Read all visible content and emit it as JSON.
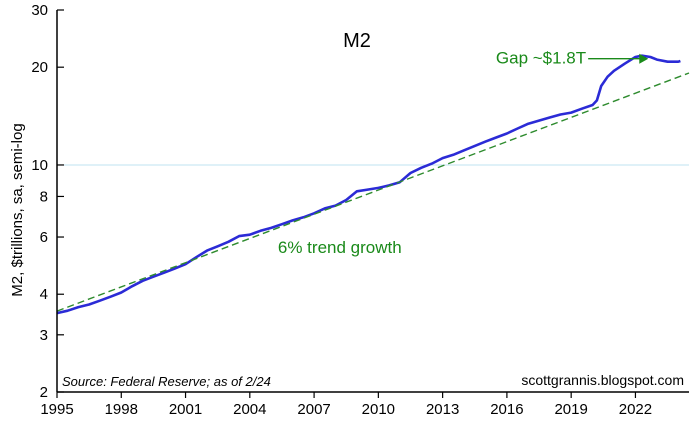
{
  "chart_data": {
    "type": "line",
    "title": "M2",
    "ylabel": "M2, $trillions, sa, semi-log",
    "y_scale": "log",
    "ylim": [
      2,
      30
    ],
    "xlim": [
      1995,
      2024.5
    ],
    "x_ticks": [
      "1995",
      "1998",
      "2001",
      "2004",
      "2007",
      "2010",
      "2013",
      "2016",
      "2019",
      "2022"
    ],
    "y_ticks": [
      "2",
      "3",
      "4",
      "6",
      "8",
      "10",
      "20",
      "30"
    ],
    "reference_line_y": 10,
    "colors": {
      "series": "#2b2bd6",
      "trend": "#2e8b2e",
      "annotation": "#1a8a1a",
      "reference": "#bfe3f2",
      "axis": "#000000"
    },
    "series": [
      {
        "x": [
          1995.0,
          1995.5,
          1996.0,
          1996.5,
          1997.0,
          1997.5,
          1998.0,
          1998.5,
          1999.0,
          1999.5,
          2000.0,
          2000.5,
          2001.0,
          2001.5,
          2002.0,
          2002.5,
          2003.0,
          2003.5,
          2004.0,
          2004.5,
          2005.0,
          2005.5,
          2006.0,
          2006.5,
          2007.0,
          2007.5,
          2008.0,
          2008.5,
          2009.0,
          2009.5,
          2010.0,
          2010.5,
          2011.0,
          2011.5,
          2012.0,
          2012.5,
          2013.0,
          2013.5,
          2014.0,
          2014.5,
          2015.0,
          2015.5,
          2016.0,
          2016.5,
          2017.0,
          2017.5,
          2018.0,
          2018.5,
          2019.0,
          2019.5,
          2020.0,
          2020.2,
          2020.4,
          2020.7,
          2021.0,
          2021.5,
          2022.0,
          2022.3,
          2022.7,
          2023.0,
          2023.5,
          2024.0,
          2024.1
        ],
        "values": [
          3.5,
          3.56,
          3.65,
          3.72,
          3.82,
          3.93,
          4.05,
          4.23,
          4.4,
          4.53,
          4.66,
          4.8,
          4.95,
          5.2,
          5.45,
          5.62,
          5.8,
          6.04,
          6.1,
          6.27,
          6.4,
          6.57,
          6.75,
          6.9,
          7.1,
          7.35,
          7.5,
          7.8,
          8.3,
          8.4,
          8.5,
          8.65,
          8.85,
          9.45,
          9.8,
          10.1,
          10.5,
          10.75,
          11.1,
          11.45,
          11.8,
          12.15,
          12.5,
          12.95,
          13.4,
          13.7,
          14.0,
          14.3,
          14.5,
          14.9,
          15.3,
          15.8,
          17.5,
          18.7,
          19.5,
          20.5,
          21.5,
          21.7,
          21.5,
          21.1,
          20.8,
          20.8,
          20.9
        ]
      },
      {
        "style": "dashed",
        "x": [
          1995.0,
          2024.5
        ],
        "values": [
          3.55,
          19.2
        ]
      }
    ],
    "annotations": [
      {
        "text": "Gap ~$1.8T",
        "x": 2019.7,
        "y": 20.5
      },
      {
        "text": "6% trend growth",
        "x": 2008.2,
        "y": 5.35
      }
    ],
    "source_note": "Source: Federal Reserve; as of 2/24",
    "credit": "scottgrannis.blogspot.com"
  }
}
